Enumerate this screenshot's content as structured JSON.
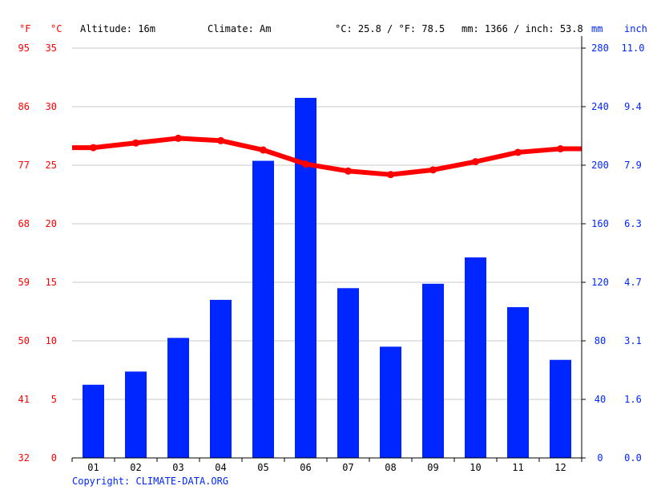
{
  "header": {
    "unit_f": "°F",
    "unit_c": "°C",
    "altitude": "Altitude: 16m",
    "climate": "Climate: Am",
    "avg_temp": "°C: 25.8 / °F: 78.5",
    "total_precip": "mm: 1366 / inch: 53.8",
    "unit_mm": "mm",
    "unit_inch": "inch"
  },
  "copyright": "Copyright: CLIMATE-DATA.ORG",
  "colors": {
    "temperature": "#ff0000",
    "precipitation": "#0026ff",
    "grid": "#c8c8c8",
    "right_axis_labels": "#0026ff"
  },
  "chart_data": {
    "type": "bar+line",
    "categories": [
      "01",
      "02",
      "03",
      "04",
      "05",
      "06",
      "07",
      "08",
      "09",
      "10",
      "11",
      "12"
    ],
    "series": [
      {
        "type": "bar",
        "axis": "right",
        "unit": "mm",
        "values": [
          50,
          59,
          82,
          108,
          203,
          246,
          116,
          76,
          119,
          137,
          103,
          67
        ]
      },
      {
        "type": "line",
        "axis": "left",
        "unit": "°C",
        "values": [
          26.5,
          26.9,
          27.3,
          27.1,
          26.3,
          25.1,
          24.5,
          24.2,
          24.6,
          25.3,
          26.1,
          26.4
        ]
      }
    ],
    "y_left_c": {
      "ticks": [
        "0",
        "5",
        "10",
        "15",
        "20",
        "25",
        "30",
        "35"
      ],
      "range": [
        0,
        35
      ]
    },
    "y_left_f": {
      "ticks": [
        "32",
        "41",
        "50",
        "59",
        "68",
        "77",
        "86",
        "95"
      ]
    },
    "y_right_mm": {
      "ticks": [
        "0",
        "40",
        "80",
        "120",
        "160",
        "200",
        "240",
        "280"
      ],
      "range": [
        0,
        280
      ]
    },
    "y_right_inch": {
      "ticks": [
        "0.0",
        "1.6",
        "3.1",
        "4.7",
        "6.3",
        "7.9",
        "9.4",
        "11.0"
      ]
    },
    "grid": true
  }
}
